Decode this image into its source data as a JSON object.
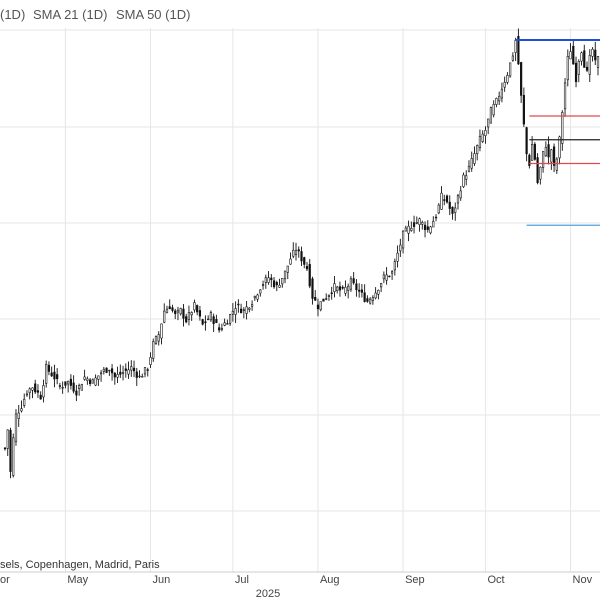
{
  "indicators": [
    "(1D)",
    "SMA 21 (1D)",
    "SMA 50 (1D)"
  ],
  "exchange_note": "sels, Copenhagen, Madrid, Paris",
  "chart_data": {
    "type": "candlestick",
    "x_axis": {
      "month_labels": [
        {
          "label": "or",
          "day": 0
        },
        {
          "label": "May",
          "day": 22
        },
        {
          "label": "Jun",
          "day": 53
        },
        {
          "label": "Jul",
          "day": 83
        },
        {
          "label": "Aug",
          "day": 114
        },
        {
          "label": "Sep",
          "day": 145
        },
        {
          "label": "Oct",
          "day": 175
        },
        {
          "label": "Nov",
          "day": 206
        }
      ],
      "year_label": "2025",
      "range_days": [
        0,
        216
      ]
    },
    "y_axis": {
      "range": [
        0,
        100
      ],
      "tick_labels_shown": false
    },
    "grid": true,
    "series": [
      {
        "kind": "close_path_points",
        "points": [
          [
            0,
            14
          ],
          [
            1,
            18
          ],
          [
            2,
            9
          ],
          [
            3,
            16
          ],
          [
            4,
            21
          ],
          [
            6,
            23
          ],
          [
            8,
            26
          ],
          [
            10,
            27
          ],
          [
            13,
            25
          ],
          [
            15,
            31
          ],
          [
            18,
            29
          ],
          [
            20,
            27
          ],
          [
            23,
            28
          ],
          [
            26,
            26
          ],
          [
            29,
            29
          ],
          [
            32,
            28
          ],
          [
            35,
            30
          ],
          [
            38,
            31
          ],
          [
            40,
            29
          ],
          [
            43,
            30
          ],
          [
            46,
            31
          ],
          [
            49,
            29
          ],
          [
            52,
            31
          ],
          [
            54,
            36
          ],
          [
            56,
            38
          ],
          [
            58,
            43
          ],
          [
            60,
            44
          ],
          [
            62,
            42
          ],
          [
            64,
            43
          ],
          [
            66,
            41
          ],
          [
            69,
            44
          ],
          [
            72,
            40
          ],
          [
            75,
            42
          ],
          [
            78,
            39
          ],
          [
            81,
            41
          ],
          [
            84,
            44
          ],
          [
            87,
            43
          ],
          [
            90,
            45
          ],
          [
            93,
            48
          ],
          [
            96,
            50
          ],
          [
            99,
            48
          ],
          [
            102,
            51
          ],
          [
            104,
            54
          ],
          [
            106,
            56
          ],
          [
            108,
            54
          ],
          [
            110,
            52
          ],
          [
            112,
            46
          ],
          [
            114,
            44
          ],
          [
            117,
            46
          ],
          [
            120,
            48
          ],
          [
            123,
            47
          ],
          [
            126,
            49
          ],
          [
            129,
            47
          ],
          [
            132,
            45
          ],
          [
            135,
            47
          ],
          [
            138,
            50
          ],
          [
            141,
            51
          ],
          [
            143,
            55
          ],
          [
            145,
            59
          ],
          [
            148,
            61
          ],
          [
            151,
            62
          ],
          [
            154,
            60
          ],
          [
            157,
            63
          ],
          [
            159,
            67
          ],
          [
            161,
            66
          ],
          [
            163,
            63
          ],
          [
            165,
            67
          ],
          [
            167,
            71
          ],
          [
            169,
            73
          ],
          [
            171,
            76
          ],
          [
            173,
            79
          ],
          [
            175,
            81
          ],
          [
            177,
            85
          ],
          [
            179,
            87
          ],
          [
            181,
            90
          ],
          [
            183,
            93
          ],
          [
            185,
            97
          ],
          [
            186,
            100
          ],
          [
            187,
            95
          ],
          [
            188,
            88
          ],
          [
            189,
            82
          ],
          [
            190,
            76
          ],
          [
            191,
            74
          ],
          [
            192,
            78
          ],
          [
            193,
            75
          ],
          [
            194,
            70
          ],
          [
            195,
            73
          ],
          [
            196,
            76
          ],
          [
            197,
            78
          ],
          [
            198,
            75
          ],
          [
            199,
            77
          ],
          [
            200,
            73
          ],
          [
            201,
            75
          ],
          [
            202,
            79
          ],
          [
            203,
            85
          ],
          [
            204,
            91
          ],
          [
            205,
            96
          ],
          [
            206,
            98
          ],
          [
            207,
            95
          ],
          [
            208,
            92
          ],
          [
            209,
            96
          ],
          [
            210,
            98
          ],
          [
            211,
            95
          ],
          [
            212,
            93
          ],
          [
            213,
            96
          ],
          [
            214,
            98
          ],
          [
            215,
            95
          ],
          [
            216,
            96
          ]
        ]
      }
    ],
    "annotations": [
      {
        "kind": "hline",
        "label": "high-line",
        "color": "#1f4fd6",
        "y": 100,
        "x_from": 186,
        "x_to": 216
      },
      {
        "kind": "hline",
        "label": "upper-red-line",
        "color": "#e04a4a",
        "y": 84,
        "x_from": 191,
        "x_to": 216
      },
      {
        "kind": "hline",
        "label": "mid-black-line",
        "color": "#222222",
        "y": 79,
        "x_from": 191,
        "x_to": 216
      },
      {
        "kind": "hline",
        "label": "lower-red-line",
        "color": "#e04a4a",
        "y": 74,
        "x_from": 191,
        "x_to": 216
      },
      {
        "kind": "hline",
        "label": "low-line",
        "color": "#4fa3e0",
        "y": 61,
        "x_from": 190,
        "x_to": 216
      }
    ]
  }
}
